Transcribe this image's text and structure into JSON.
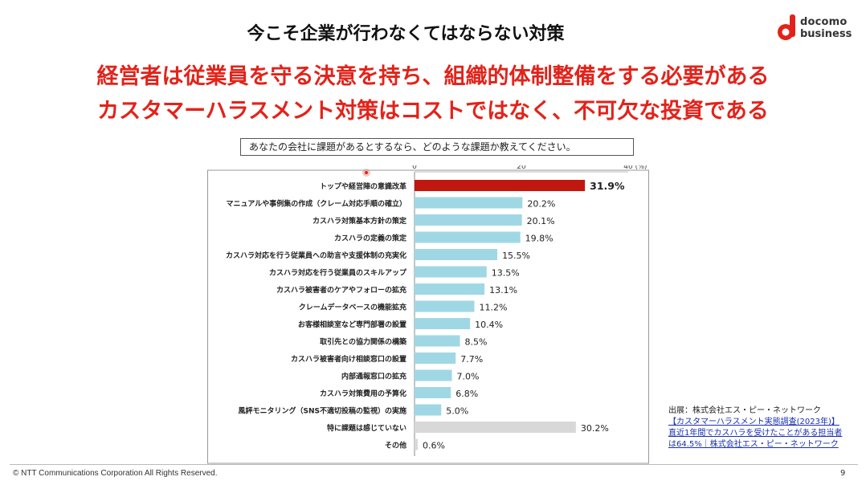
{
  "slide": {
    "title": "今こそ企業が行わなくてはならない対策",
    "headline_1": "経営者は従業員を守る決意を持ち、組織的体制整備をする必要がある",
    "headline_2": "カスタマーハラスメント対策はコストではなく、不可欠な投資である",
    "brand_line1": "docomo",
    "brand_line2": "business",
    "question": "あなたの会社に課題があるとするなら、どのような課題か教えてください。",
    "source_label": "出展：株式会社エス・ピー・ネットワーク",
    "source_link_1": "【カスタマーハラスメント実態調査(2023年)】",
    "source_link_2": "直近1年間でカスハラを受けたことがある担当者",
    "source_link_3": "は64.5%｜株式会社エス・ピー・ネットワーク",
    "copyright": "© NTT Communications Corporation All Rights Reserved.",
    "page_number": "9"
  },
  "colors": {
    "accent_red": "#e2231a",
    "bar_highlight": "#c0170f",
    "bar_default": "#9fd8e4",
    "bar_grey": "#d8d8d8"
  },
  "chart_data": {
    "type": "bar",
    "orientation": "horizontal",
    "unit_label": "(%)",
    "xlim": [
      0,
      40
    ],
    "x_ticks": [
      "0",
      "20",
      "40"
    ],
    "categories": [
      "トップや経営陣の意識改革",
      "マニュアルや事例集の作成（クレーム対応手順の確立）",
      "カスハラ対策基本方針の策定",
      "カスハラの定義の策定",
      "カスハラ対応を行う従業員への助言や支援体制の充実化",
      "カスハラ対応を行う従業員のスキルアップ",
      "カスハラ被害者のケアやフォローの拡充",
      "クレームデータベースの機能拡充",
      "お客様相談室など専門部署の設置",
      "取引先との協力関係の構築",
      "カスハラ被害者向け相談窓口の設置",
      "内部通報窓口の拡充",
      "カスハラ対策費用の予算化",
      "風評モニタリング（SNS不適切投稿の監視）の実施",
      "特に課題は感じていない",
      "その他"
    ],
    "values": [
      31.9,
      20.2,
      20.1,
      19.8,
      15.5,
      13.5,
      13.1,
      11.2,
      10.4,
      8.5,
      7.7,
      7.0,
      6.8,
      5.0,
      30.2,
      0.6
    ],
    "value_labels": [
      "31.9%",
      "20.2%",
      "20.1%",
      "19.8%",
      "15.5%",
      "13.5%",
      "13.1%",
      "11.2%",
      "10.4%",
      "8.5%",
      "7.7%",
      "7.0%",
      "6.8%",
      "5.0%",
      "30.2%",
      "0.6%"
    ],
    "bar_colors": [
      "highlight",
      "default",
      "default",
      "default",
      "default",
      "default",
      "default",
      "default",
      "default",
      "default",
      "default",
      "default",
      "default",
      "default",
      "grey",
      "grey"
    ],
    "grid": false
  }
}
